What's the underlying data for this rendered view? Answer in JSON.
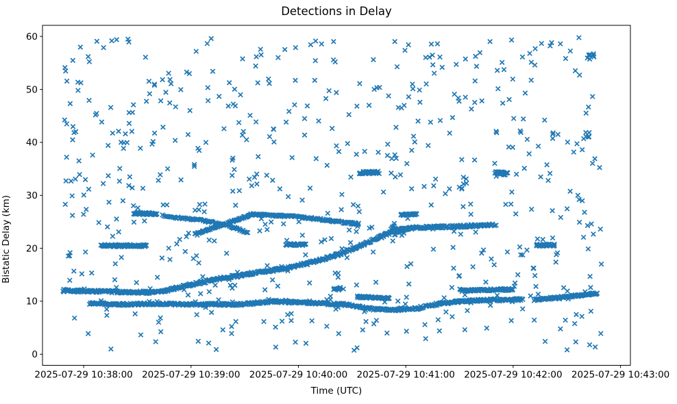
{
  "figure": {
    "title": "Detections in Delay",
    "xlabel": "Time (UTC)",
    "ylabel": "Bistatic Delay (km)"
  },
  "chart_data": {
    "type": "scatter",
    "marker": "x",
    "marker_color": "#1f77b4",
    "title": "Detections in Delay",
    "xlabel": "Time (UTC)",
    "ylabel": "Bistatic Delay (km)",
    "grid": false,
    "legend": null,
    "time_reference": "2025-07-29 10:38:00",
    "x_axis": {
      "tick_labels": [
        "2025-07-29 10:38:00",
        "2025-07-29 10:39:00",
        "2025-07-29 10:40:00",
        "2025-07-29 10:41:00",
        "2025-07-29 10:42:00",
        "2025-07-29 10:43:00"
      ],
      "tick_offsets_seconds": [
        0,
        60,
        120,
        180,
        240,
        300
      ],
      "range_seconds": [
        -23,
        305.5
      ]
    },
    "y_axis": {
      "ticks": [
        0,
        10,
        20,
        30,
        40,
        50,
        60
      ],
      "range": [
        -2.1,
        62.1
      ]
    },
    "seed": 1234,
    "tracks": [
      {
        "name": "main-target-track",
        "density": 2.6,
        "jitter_t": 0.45,
        "jitter_d": 0.24,
        "points": [
          [
            -11.5,
            12.0
          ],
          [
            5,
            11.9
          ],
          [
            22,
            11.7
          ],
          [
            38,
            11.7
          ],
          [
            45,
            11.9
          ],
          [
            61,
            13.2
          ],
          [
            75,
            14.2
          ],
          [
            99,
            15.5
          ],
          [
            114,
            16.3
          ],
          [
            126,
            17.2
          ],
          [
            142,
            18.8
          ],
          [
            153,
            20.3
          ],
          [
            160,
            21.3
          ],
          [
            168,
            22.5
          ],
          [
            175,
            23.4
          ],
          [
            186,
            23.9
          ],
          [
            206,
            24.1
          ],
          [
            221,
            24.3
          ],
          [
            230,
            24.5
          ]
        ]
      },
      {
        "name": "descending-ridge-26-23",
        "density": 1.7,
        "jitter_t": 0.4,
        "jitter_d": 0.18,
        "points": [
          [
            44,
            26.2
          ],
          [
            52,
            25.8
          ],
          [
            64,
            25.4
          ],
          [
            80,
            24.4
          ],
          [
            92,
            22.9
          ]
        ]
      },
      {
        "name": "hump-track-26",
        "density": 2.3,
        "jitter_t": 0.4,
        "jitter_d": 0.18,
        "points": [
          [
            62,
            22.6
          ],
          [
            72,
            23.8
          ],
          [
            80,
            24.7
          ],
          [
            94,
            26.4
          ],
          [
            106,
            26.2
          ],
          [
            118,
            26.0
          ],
          [
            129,
            25.6
          ],
          [
            145,
            24.9
          ],
          [
            154,
            24.6
          ]
        ]
      },
      {
        "name": "segment-26-left",
        "density": 3.5,
        "jitter_t": 0.35,
        "jitter_d": 0.2,
        "points": [
          [
            28,
            26.6
          ],
          [
            41,
            26.5
          ]
        ]
      },
      {
        "name": "segment-26-mid",
        "density": 3.5,
        "jitter_t": 0.35,
        "jitter_d": 0.18,
        "points": [
          [
            177,
            26.3
          ],
          [
            186,
            26.4
          ]
        ]
      },
      {
        "name": "segment-20-left",
        "density": 3.5,
        "jitter_t": 0.35,
        "jitter_d": 0.22,
        "points": [
          [
            10,
            20.5
          ],
          [
            35,
            20.5
          ]
        ]
      },
      {
        "name": "segment-20-mid",
        "density": 3.5,
        "jitter_t": 0.35,
        "jitter_d": 0.2,
        "points": [
          [
            113,
            20.7
          ],
          [
            124,
            20.7
          ]
        ]
      },
      {
        "name": "segment-20-right",
        "density": 3.5,
        "jitter_t": 0.35,
        "jitter_d": 0.2,
        "points": [
          [
            253,
            20.6
          ],
          [
            263,
            20.6
          ]
        ]
      },
      {
        "name": "segment-34-left",
        "density": 3.5,
        "jitter_t": 0.35,
        "jitter_d": 0.25,
        "points": [
          [
            154,
            34.3
          ],
          [
            165,
            34.3
          ]
        ]
      },
      {
        "name": "segment-34-right",
        "density": 3.0,
        "jitter_t": 0.35,
        "jitter_d": 0.3,
        "points": [
          [
            230,
            34.2
          ],
          [
            237,
            34.1
          ]
        ]
      },
      {
        "name": "bottom-track-9km",
        "density": 2.5,
        "jitter_t": 0.45,
        "jitter_d": 0.22,
        "points": [
          [
            3,
            9.6
          ],
          [
            22,
            9.4
          ],
          [
            42,
            9.5
          ],
          [
            61,
            9.4
          ],
          [
            87,
            9.4
          ],
          [
            106,
            10.0
          ],
          [
            126,
            9.7
          ],
          [
            145,
            9.4
          ],
          [
            152,
            9.1
          ],
          [
            162,
            8.5
          ],
          [
            175,
            8.4
          ],
          [
            185,
            8.6
          ],
          [
            198,
            9.5
          ],
          [
            211,
            10.0
          ],
          [
            221,
            10.2
          ],
          [
            245,
            10.3
          ]
        ]
      },
      {
        "name": "segment-10-8",
        "density": 3.0,
        "jitter_t": 0.35,
        "jitter_d": 0.2,
        "points": [
          [
            153,
            10.8
          ],
          [
            171,
            10.6
          ]
        ]
      },
      {
        "name": "band-12-right",
        "density": 3.0,
        "jitter_t": 0.35,
        "jitter_d": 0.2,
        "points": [
          [
            211,
            12.0
          ],
          [
            232,
            12.2
          ],
          [
            240,
            12.2
          ]
        ]
      },
      {
        "name": "rising-track-right",
        "density": 2.6,
        "jitter_t": 0.4,
        "jitter_d": 0.2,
        "points": [
          [
            252,
            10.3
          ],
          [
            271,
            10.9
          ],
          [
            287,
            11.5
          ]
        ]
      }
    ],
    "clusters": [
      {
        "name": "cluster-24km",
        "t": 174,
        "d": 23.3,
        "t_spread": 5.5,
        "d_spread": 1.1,
        "count": 28
      },
      {
        "name": "cluster-56km-right",
        "t": 283,
        "d": 56.5,
        "t_spread": 2.5,
        "d_spread": 1.3,
        "count": 8
      },
      {
        "name": "cluster-41km-right",
        "t": 281,
        "d": 41.5,
        "t_spread": 3.0,
        "d_spread": 1.0,
        "count": 7
      },
      {
        "name": "cluster-32km",
        "t": 212,
        "d": 31.8,
        "t_spread": 2.5,
        "d_spread": 0.8,
        "count": 6
      },
      {
        "name": "cluster-12km-mid",
        "t": 142,
        "d": 12.4,
        "t_spread": 4.0,
        "d_spread": 0.35,
        "count": 10
      }
    ],
    "noise": [
      {
        "name": "clutter-upper",
        "count": 560,
        "t_range": [
          -12,
          290
        ],
        "d_range": [
          6.0,
          59.8
        ]
      },
      {
        "name": "clutter-lower",
        "count": 36,
        "t_range": [
          -12,
          290
        ],
        "d_range": [
          0.5,
          5.9
        ]
      }
    ]
  }
}
